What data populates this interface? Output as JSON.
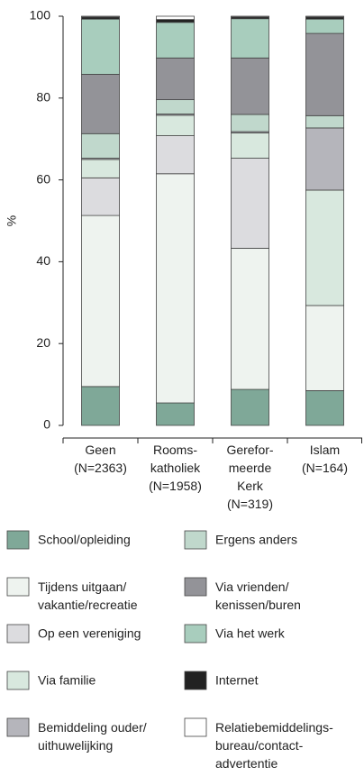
{
  "chart_data": {
    "type": "stacked_bar",
    "ylabel": "%",
    "categories": [
      "Geen\n(N=2363)",
      "Rooms-\nkatholiek\n(N=1958)",
      "Gerefor-\nmeerde\nKerk\n(N=319)",
      "Islam\n(N=164)"
    ],
    "ylim": [
      0,
      100
    ],
    "yticks": [
      0,
      20,
      40,
      60,
      80,
      100
    ],
    "series": [
      {
        "name": "School/opleiding",
        "color": "#7fa898",
        "values": [
          9.5,
          5.5,
          8.8,
          8.5
        ]
      },
      {
        "name": "Tijdens uitgaan/\nvakantie/recreatie",
        "color": "#eef3ef",
        "values": [
          41.8,
          56,
          34.5,
          20.8
        ]
      },
      {
        "name": "Op een vereniging",
        "color": "#dcdcdf",
        "values": [
          9.2,
          9.3,
          22,
          0
        ]
      },
      {
        "name": "Via familie",
        "color": "#d8e8de",
        "values": [
          4.5,
          5,
          6.2,
          28.2
        ]
      },
      {
        "name": "Bemiddeling ouder/\nuithuwelijking",
        "color": "#b5b5bb",
        "values": [
          0.3,
          0.3,
          0.3,
          15.2
        ]
      },
      {
        "name": "Ergens anders",
        "color": "#c0d8cc",
        "values": [
          6,
          3.5,
          4.2,
          3
        ]
      },
      {
        "name": "Via vrienden/\nkenissen/buren",
        "color": "#939398",
        "values": [
          14.5,
          10.2,
          13.8,
          20.1
        ]
      },
      {
        "name": "Via het werk",
        "color": "#a8cdbd",
        "values": [
          13.5,
          8.7,
          9.6,
          3.5
        ]
      },
      {
        "name": "Internet",
        "color": "#222222",
        "values": [
          0.5,
          0.7,
          0.4,
          0.5
        ]
      },
      {
        "name": "Relatiebemiddelings-\nbureau/contact-\nadvertentie",
        "color": "#ffffff",
        "values": [
          0.2,
          0.8,
          0.2,
          0.2
        ]
      }
    ]
  }
}
